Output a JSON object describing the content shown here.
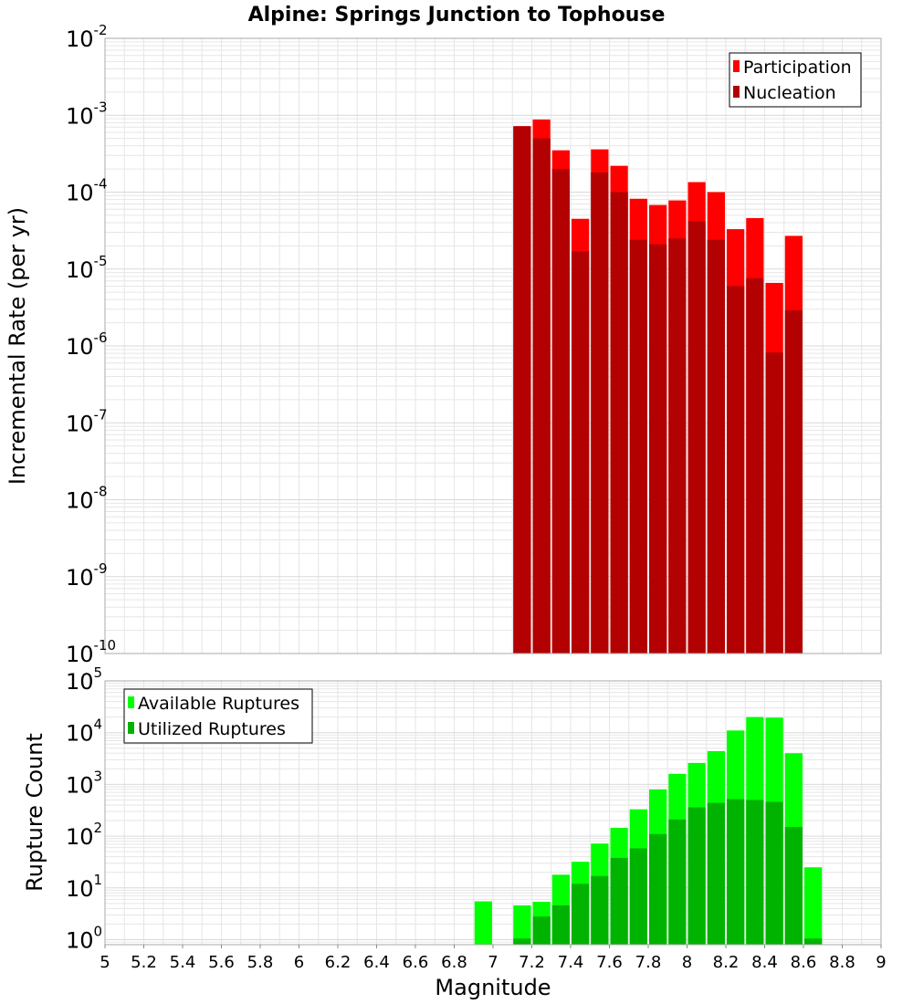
{
  "title": "Alpine: Springs Junction to Tophouse",
  "colors": {
    "participation": "#ff0000",
    "nucleation": "#b30000",
    "available": "#00ff00",
    "utilized": "#00b300",
    "grid": "#e6e6e6",
    "frame": "#aaaaaa"
  },
  "chart_data": [
    {
      "type": "bar",
      "panel": "top",
      "scale": "log",
      "title": "Alpine: Springs Junction to Tophouse",
      "xlabel": "Magnitude",
      "ylabel": "Incremental Rate (per yr)",
      "xlim": [
        5,
        9
      ],
      "ylim": [
        1e-10,
        0.01
      ],
      "ytick_labels": [
        {
          "base": "10",
          "exp": "-10",
          "value": 1e-10
        },
        {
          "base": "10",
          "exp": "-9",
          "value": 1e-09
        },
        {
          "base": "10",
          "exp": "-8",
          "value": 1e-08
        },
        {
          "base": "10",
          "exp": "-7",
          "value": 1e-07
        },
        {
          "base": "10",
          "exp": "-6",
          "value": 1e-06
        },
        {
          "base": "10",
          "exp": "-5",
          "value": 1e-05
        },
        {
          "base": "10",
          "exp": "-4",
          "value": 0.0001
        },
        {
          "base": "10",
          "exp": "-3",
          "value": 0.001
        },
        {
          "base": "10",
          "exp": "-2",
          "value": 0.01
        }
      ],
      "legend_position": "top-right",
      "x": [
        7.15,
        7.25,
        7.35,
        7.45,
        7.55,
        7.65,
        7.75,
        7.85,
        7.95,
        8.05,
        8.15,
        8.25,
        8.35,
        8.45,
        8.55
      ],
      "series": [
        {
          "name": "Participation",
          "values": [
            0.00072,
            0.00088,
            0.00035,
            4.5e-05,
            0.00036,
            0.00022,
            8.2e-05,
            6.8e-05,
            7.8e-05,
            0.000135,
            0.0001,
            3.3e-05,
            4.6e-05,
            6.6e-06,
            2.7e-05
          ]
        },
        {
          "name": "Nucleation",
          "values": [
            0.00072,
            0.0005,
            0.0002,
            1.7e-05,
            0.00018,
            0.0001,
            2.4e-05,
            2.1e-05,
            2.5e-05,
            4.2e-05,
            2.4e-05,
            6e-06,
            7.6e-06,
            8.2e-07,
            2.9e-06
          ]
        }
      ]
    },
    {
      "type": "bar",
      "panel": "bottom",
      "scale": "log",
      "xlabel": "Magnitude",
      "ylabel": "Rupture Count",
      "xlim": [
        5,
        9
      ],
      "ylim": [
        0.8,
        100000
      ],
      "xtick_labels": [
        "5",
        "5.2",
        "5.4",
        "5.6",
        "5.8",
        "6",
        "6.2",
        "6.4",
        "6.6",
        "6.8",
        "7",
        "7.2",
        "7.4",
        "7.6",
        "7.8",
        "8",
        "8.2",
        "8.4",
        "8.6",
        "8.8",
        "9"
      ],
      "ytick_labels": [
        {
          "base": "10",
          "exp": "0",
          "value": 1
        },
        {
          "base": "10",
          "exp": "1",
          "value": 10
        },
        {
          "base": "10",
          "exp": "2",
          "value": 100
        },
        {
          "base": "10",
          "exp": "3",
          "value": 1000
        },
        {
          "base": "10",
          "exp": "4",
          "value": 10000
        },
        {
          "base": "10",
          "exp": "5",
          "value": 100000
        }
      ],
      "legend_position": "top-left",
      "x": [
        6.95,
        7.15,
        7.25,
        7.35,
        7.45,
        7.55,
        7.65,
        7.75,
        7.85,
        7.95,
        8.05,
        8.15,
        8.25,
        8.35,
        8.45,
        8.55,
        8.65
      ],
      "series": [
        {
          "name": "Available Ruptures",
          "values": [
            5.5,
            4.6,
            5.4,
            18,
            32,
            72,
            145,
            330,
            800,
            1600,
            2600,
            4400,
            11000,
            20000,
            19500,
            4000,
            25
          ]
        },
        {
          "name": "Utilized Ruptures",
          "values": [
            0,
            1.05,
            2.8,
            4.6,
            12,
            17,
            38,
            58,
            110,
            210,
            360,
            440,
            520,
            500,
            460,
            150,
            1.05
          ]
        }
      ]
    }
  ]
}
